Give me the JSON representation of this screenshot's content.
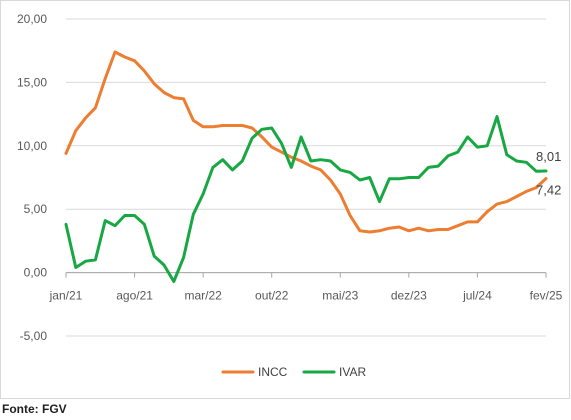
{
  "chart_data": {
    "type": "line",
    "ylim": [
      -5,
      20
    ],
    "y_ticks": [
      {
        "value": -5,
        "label": "-5,00"
      },
      {
        "value": 0,
        "label": "0,00"
      },
      {
        "value": 5,
        "label": "5,00"
      },
      {
        "value": 10,
        "label": "10,00"
      },
      {
        "value": 15,
        "label": "15,00"
      },
      {
        "value": 20,
        "label": "20,00"
      }
    ],
    "grid": "horizontal",
    "x_ticks": [
      {
        "index": 0,
        "label": "jan/21"
      },
      {
        "index": 7,
        "label": "ago/21"
      },
      {
        "index": 14,
        "label": "mar/22"
      },
      {
        "index": 21,
        "label": "out/22"
      },
      {
        "index": 28,
        "label": "mai/23"
      },
      {
        "index": 35,
        "label": "dez/23"
      },
      {
        "index": 42,
        "label": "jul/24"
      },
      {
        "index": 49,
        "label": "fev/25"
      }
    ],
    "x_count": 50,
    "series": [
      {
        "name": "INCC",
        "color": "#ed7d31",
        "values": [
          9.4,
          11.2,
          12.2,
          13.0,
          15.3,
          17.4,
          17.0,
          16.7,
          15.9,
          14.9,
          14.2,
          13.8,
          13.7,
          12.0,
          11.5,
          11.5,
          11.6,
          11.6,
          11.6,
          11.4,
          10.7,
          9.9,
          9.5,
          9.1,
          8.8,
          8.4,
          8.1,
          7.3,
          6.2,
          4.5,
          3.3,
          3.2,
          3.3,
          3.5,
          3.6,
          3.3,
          3.5,
          3.3,
          3.4,
          3.4,
          3.7,
          4.0,
          4.0,
          4.8,
          5.4,
          5.6,
          6.0,
          6.4,
          6.7,
          7.42
        ],
        "end_label": "7,42"
      },
      {
        "name": "IVAR",
        "color": "#18a843",
        "values": [
          3.8,
          0.4,
          0.9,
          1.0,
          4.1,
          3.7,
          4.5,
          4.5,
          3.8,
          1.3,
          0.6,
          -0.7,
          1.2,
          4.6,
          6.2,
          8.3,
          8.9,
          8.1,
          8.8,
          10.6,
          11.3,
          11.4,
          10.2,
          8.3,
          10.7,
          8.8,
          8.9,
          8.8,
          8.1,
          7.9,
          7.3,
          7.5,
          5.6,
          7.4,
          7.4,
          7.5,
          7.5,
          8.3,
          8.4,
          9.2,
          9.5,
          10.7,
          9.9,
          10.0,
          12.3,
          9.3,
          8.8,
          8.7,
          8.0,
          8.01
        ],
        "end_label": "8,01"
      }
    ],
    "legend": {
      "position": "bottom",
      "items": [
        "INCC",
        "IVAR"
      ]
    }
  },
  "source_note": "Fonte: FGV"
}
